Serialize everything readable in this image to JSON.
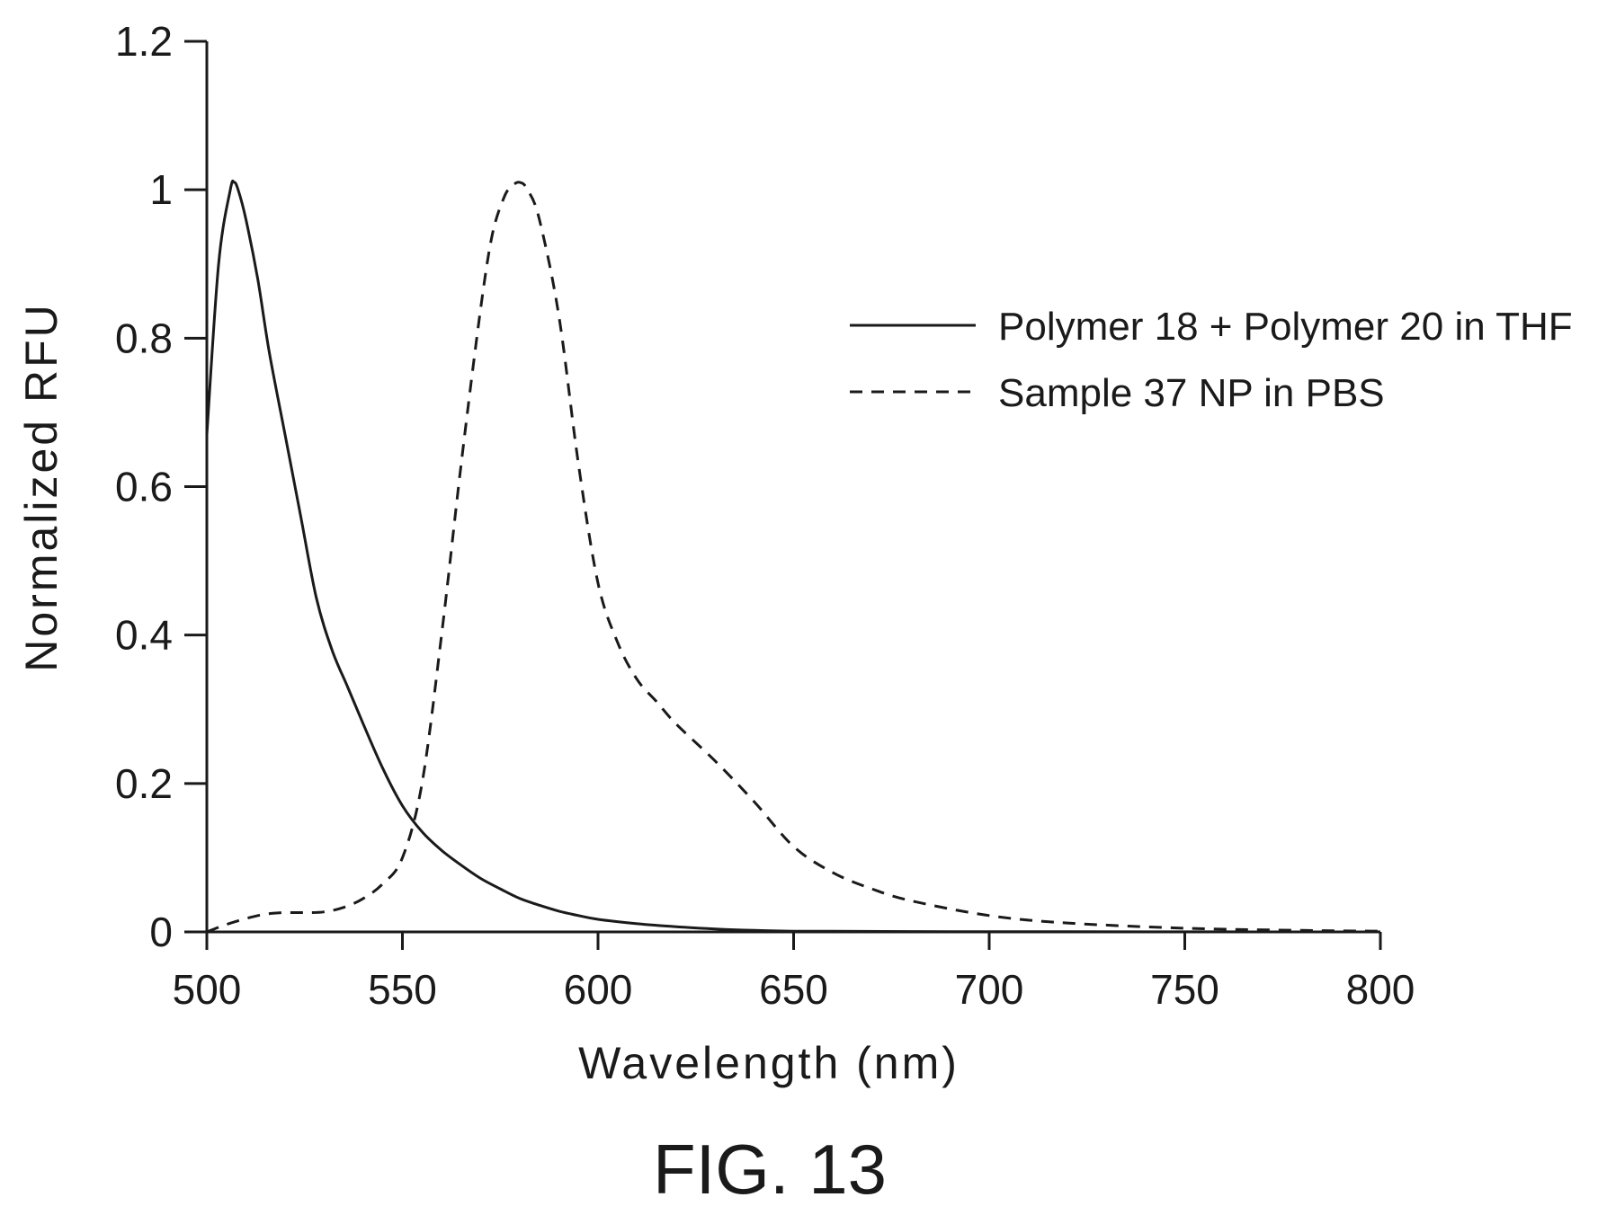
{
  "figure_label": "FIG. 13",
  "chart_data": {
    "type": "line",
    "xlabel": "Wavelength (nm)",
    "ylabel": "Normalized RFU",
    "xlim": [
      500,
      800
    ],
    "ylim": [
      0,
      1.2
    ],
    "x_ticks": [
      500,
      550,
      600,
      650,
      700,
      750,
      800
    ],
    "x_tick_labels": [
      "500",
      "550",
      "600",
      "650",
      "700",
      "750",
      "800"
    ],
    "y_ticks": [
      0,
      0.2,
      0.4,
      0.6,
      0.8,
      1,
      1.2
    ],
    "y_tick_labels": [
      "0",
      "0.2",
      "0.4",
      "0.6",
      "0.8",
      "1",
      "1.2"
    ],
    "grid": false,
    "legend_position": "right",
    "series": [
      {
        "name": "Polymer 18 + Polymer 20 in THF",
        "style": "solid",
        "color": "#1a1a1a",
        "x": [
          500,
          503,
          506,
          507,
          508,
          510,
          513,
          516,
          520,
          524,
          528,
          532,
          536,
          540,
          545,
          550,
          555,
          560,
          565,
          570,
          575,
          580,
          585,
          590,
          595,
          600,
          610,
          620,
          630,
          640,
          650,
          660,
          680,
          700,
          720,
          750,
          780,
          800
        ],
        "y": [
          0.67,
          0.9,
          1.0,
          1.01,
          1.0,
          0.96,
          0.88,
          0.78,
          0.67,
          0.56,
          0.45,
          0.38,
          0.33,
          0.28,
          0.22,
          0.17,
          0.135,
          0.11,
          0.09,
          0.072,
          0.058,
          0.045,
          0.036,
          0.028,
          0.022,
          0.017,
          0.011,
          0.007,
          0.004,
          0.002,
          0.001,
          0.0008,
          0.0005,
          0.0003,
          0.0002,
          0.0001,
          0.0,
          0.0
        ]
      },
      {
        "name": "Sample 37 NP in PBS",
        "style": "dashed",
        "color": "#1a1a1a",
        "x": [
          500,
          505,
          510,
          515,
          520,
          525,
          530,
          535,
          540,
          545,
          550,
          555,
          560,
          565,
          570,
          573,
          576,
          578,
          580,
          582,
          585,
          590,
          595,
          600,
          605,
          610,
          615,
          620,
          630,
          640,
          650,
          660,
          670,
          680,
          700,
          720,
          750,
          780,
          800
        ],
        "y": [
          0.0,
          0.01,
          0.018,
          0.024,
          0.026,
          0.026,
          0.027,
          0.033,
          0.045,
          0.065,
          0.1,
          0.2,
          0.4,
          0.63,
          0.84,
          0.94,
          0.99,
          1.005,
          1.01,
          1.0,
          0.96,
          0.83,
          0.63,
          0.47,
          0.39,
          0.34,
          0.31,
          0.28,
          0.23,
          0.175,
          0.115,
          0.08,
          0.058,
          0.042,
          0.022,
          0.012,
          0.005,
          0.002,
          0.001
        ]
      }
    ]
  }
}
